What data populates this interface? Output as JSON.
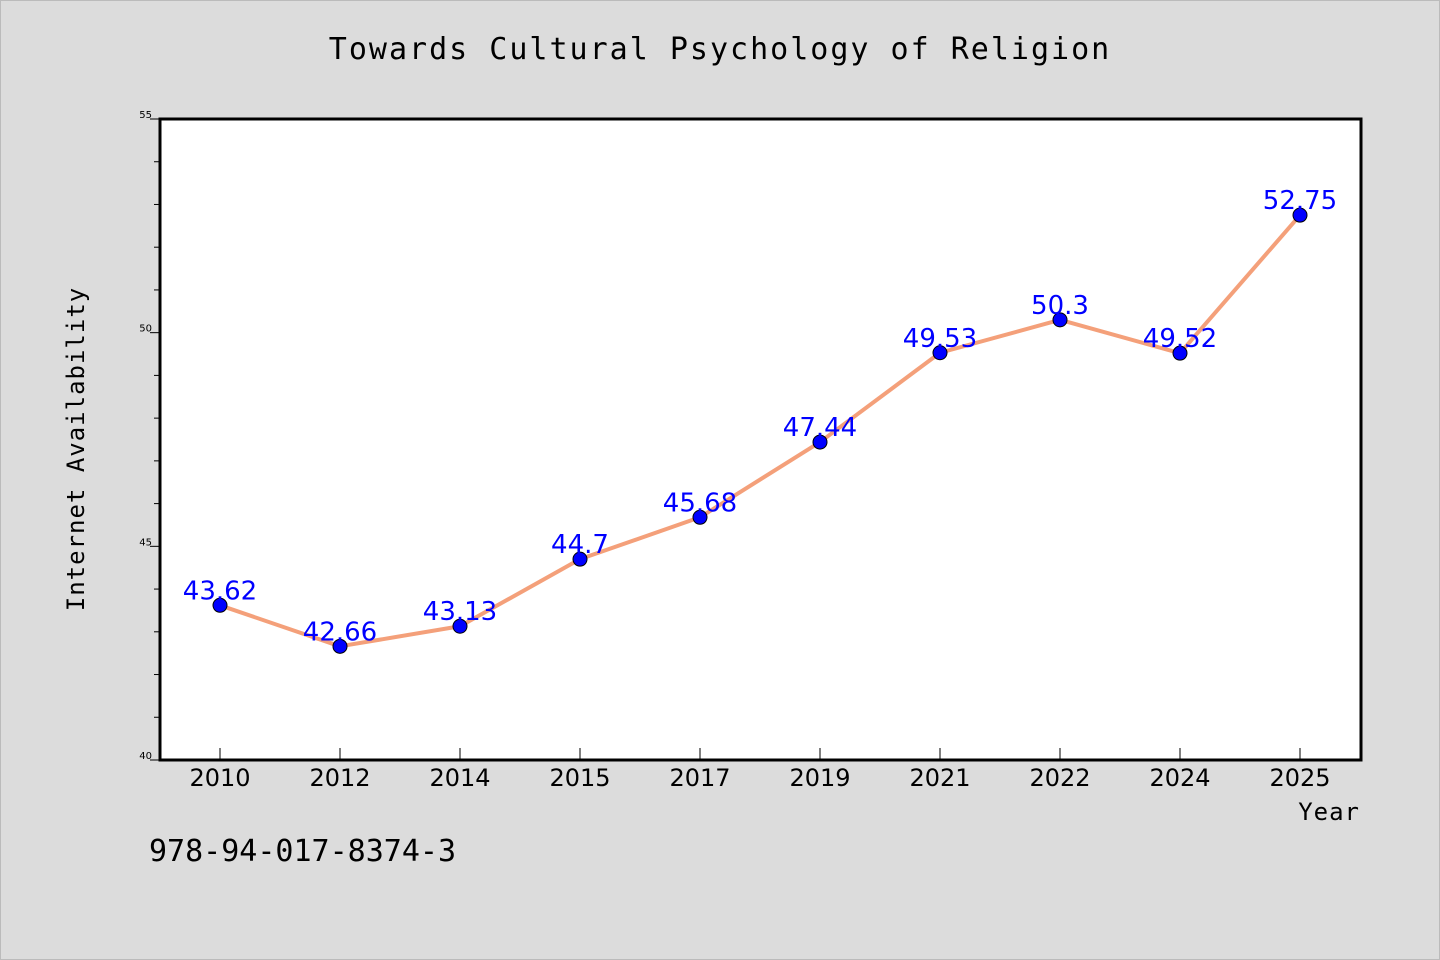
{
  "header": {
    "title": "Towards Cultural Psychology of Religion"
  },
  "footer": {
    "isbn": "978-94-017-8374-3"
  },
  "chart_data": {
    "type": "line",
    "title": "Towards Cultural Psychology of Religion",
    "xlabel": "Year",
    "ylabel": "Internet Availability",
    "categories": [
      "2010",
      "2012",
      "2014",
      "2015",
      "2017",
      "2019",
      "2021",
      "2022",
      "2024",
      "2025"
    ],
    "series": [
      {
        "values": [
          43.62,
          42.66,
          43.13,
          44.7,
          45.68,
          47.44,
          49.53,
          50.3,
          49.52,
          52.75
        ],
        "labels": [
          "43.62",
          "42.66",
          "43.13",
          "44.7",
          "45.68",
          "47.44",
          "49.53",
          "50.3",
          "49.52",
          "52.75"
        ],
        "line_color": "#f4a07a",
        "marker_color": "#0000ff"
      }
    ],
    "ylim": [
      40,
      55
    ],
    "yticks": [
      "40",
      "45",
      "50",
      "55"
    ],
    "grid": false,
    "legend": "none",
    "colors": {
      "background": "#dcdcdc",
      "plot_background": "#ffffff",
      "label_color": "#0000ff"
    }
  }
}
